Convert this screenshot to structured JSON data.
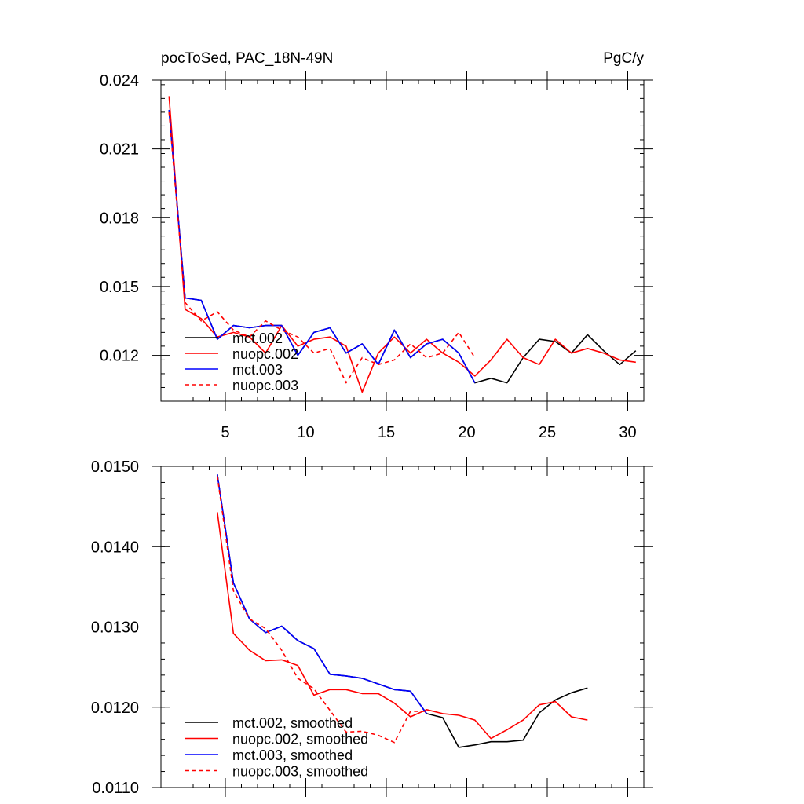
{
  "chart_data": [
    {
      "type": "line",
      "title_left": "pocToSed, PAC_18N-49N",
      "title_right": "PgC/y",
      "xlim": [
        1,
        31
      ],
      "ylim": [
        0.01,
        0.024
      ],
      "x_ticks": [
        5,
        10,
        15,
        20,
        25,
        30
      ],
      "x_tick_labels": [
        "5",
        "10",
        "15",
        "20",
        "25",
        "30"
      ],
      "y_ticks": [
        0.012,
        0.015,
        0.018,
        0.021,
        0.024
      ],
      "y_tick_labels": [
        "0.012",
        "0.015",
        "0.018",
        "0.021",
        "0.024"
      ],
      "legend_position": "bottom-left",
      "series": [
        {
          "name": "mct.002",
          "color": "#000000",
          "dash": "solid",
          "x": [
            1.5,
            2.5,
            3.5,
            4.5,
            5.5,
            6.5,
            7.5,
            8.5,
            9.5,
            10.5,
            11.5,
            12.5,
            13.5,
            14.5,
            15.5,
            16.5,
            17.5,
            18.5,
            19.5,
            20.5,
            21.5,
            22.5,
            23.5,
            24.5,
            25.5,
            26.5,
            27.5,
            28.5,
            29.5,
            30.5
          ],
          "y": [
            0.0227,
            0.0145,
            0.0144,
            0.0127,
            0.0133,
            0.0132,
            0.0133,
            0.0133,
            0.012,
            0.013,
            0.0132,
            0.0121,
            0.0125,
            0.0116,
            0.0131,
            0.0119,
            0.0125,
            0.0127,
            0.0121,
            0.0108,
            0.011,
            0.0108,
            0.0119,
            0.0127,
            0.0126,
            0.0121,
            0.0129,
            0.0122,
            0.0116,
            0.0122
          ]
        },
        {
          "name": "nuopc.002",
          "color": "#ff0000",
          "dash": "solid",
          "x": [
            1.5,
            2.5,
            3.5,
            4.5,
            5.5,
            6.5,
            7.5,
            8.5,
            9.5,
            10.5,
            11.5,
            12.5,
            13.5,
            14.5,
            15.5,
            16.5,
            17.5,
            18.5,
            19.5,
            20.5,
            21.5,
            22.5,
            23.5,
            24.5,
            25.5,
            26.5,
            27.5,
            28.5,
            29.5,
            30.5
          ],
          "y": [
            0.0233,
            0.014,
            0.0136,
            0.0128,
            0.013,
            0.0128,
            0.0121,
            0.0133,
            0.0124,
            0.0127,
            0.0128,
            0.0124,
            0.0104,
            0.0121,
            0.0128,
            0.0121,
            0.0127,
            0.0121,
            0.0117,
            0.0111,
            0.0118,
            0.0127,
            0.0119,
            0.0116,
            0.0127,
            0.0121,
            0.0123,
            0.0121,
            0.0118,
            0.0117
          ]
        },
        {
          "name": "mct.003",
          "color": "#0000ff",
          "dash": "solid",
          "x": [
            1.5,
            2.5,
            3.5,
            4.5,
            5.5,
            6.5,
            7.5,
            8.5,
            9.5,
            10.5,
            11.5,
            12.5,
            13.5,
            14.5,
            15.5,
            16.5,
            17.5,
            18.5,
            19.5,
            20.5
          ],
          "y": [
            0.0227,
            0.0145,
            0.0144,
            0.0127,
            0.0133,
            0.0132,
            0.0133,
            0.0133,
            0.012,
            0.013,
            0.0132,
            0.0121,
            0.0125,
            0.0116,
            0.0131,
            0.0119,
            0.0125,
            0.0127,
            0.0121,
            0.0108
          ]
        },
        {
          "name": "nuopc.003",
          "color": "#ff0000",
          "dash": "dashed",
          "x": [
            1.5,
            2.5,
            3.5,
            4.5,
            5.5,
            6.5,
            7.5,
            8.5,
            9.5,
            10.5,
            11.5,
            12.5,
            13.5,
            14.5,
            15.5,
            16.5,
            17.5,
            18.5,
            19.5,
            20.5
          ],
          "y": [
            0.0226,
            0.0143,
            0.0135,
            0.0139,
            0.0131,
            0.0128,
            0.0135,
            0.0131,
            0.0128,
            0.0121,
            0.0123,
            0.0108,
            0.0119,
            0.0116,
            0.0118,
            0.0125,
            0.0119,
            0.0121,
            0.013,
            0.0119
          ]
        }
      ]
    },
    {
      "type": "line",
      "xlim": [
        1,
        31
      ],
      "ylim": [
        0.011,
        0.015
      ],
      "y_ticks": [
        0.011,
        0.012,
        0.013,
        0.014,
        0.015
      ],
      "y_tick_labels": [
        "0.0110",
        "0.0120",
        "0.0130",
        "0.0140",
        "0.0150"
      ],
      "x_ticks": [
        5,
        10,
        15,
        20,
        25,
        30
      ],
      "legend_position": "bottom-left",
      "series": [
        {
          "name": "mct.002, smoothed",
          "color": "#000000",
          "dash": "solid",
          "x": [
            4.5,
            5.5,
            6.5,
            7.5,
            8.5,
            9.5,
            10.5,
            11.5,
            12.5,
            13.5,
            14.5,
            15.5,
            16.5,
            17.5,
            18.5,
            19.5,
            20.5,
            21.5,
            22.5,
            23.5,
            24.5,
            25.5,
            26.5,
            27.5
          ],
          "y": [
            0.0149,
            0.01355,
            0.0131,
            0.01293,
            0.01301,
            0.01283,
            0.01273,
            0.01241,
            0.01239,
            0.01236,
            0.01229,
            0.01222,
            0.0122,
            0.01192,
            0.01187,
            0.0115,
            0.01153,
            0.01157,
            0.01157,
            0.01159,
            0.01193,
            0.01209,
            0.01218,
            0.01224
          ]
        },
        {
          "name": "nuopc.002, smoothed",
          "color": "#ff0000",
          "dash": "solid",
          "x": [
            4.5,
            5.5,
            6.5,
            7.5,
            8.5,
            9.5,
            10.5,
            11.5,
            12.5,
            13.5,
            14.5,
            15.5,
            16.5,
            17.5,
            18.5,
            19.5,
            20.5,
            21.5,
            22.5,
            23.5,
            24.5,
            25.5,
            26.5,
            27.5
          ],
          "y": [
            0.01443,
            0.01292,
            0.01271,
            0.01258,
            0.01259,
            0.01252,
            0.01215,
            0.01222,
            0.01222,
            0.01217,
            0.01217,
            0.01205,
            0.01188,
            0.01197,
            0.01192,
            0.0119,
            0.01184,
            0.01161,
            0.01172,
            0.01184,
            0.01203,
            0.01207,
            0.01188,
            0.01184
          ]
        },
        {
          "name": "mct.003, smoothed",
          "color": "#0000ff",
          "dash": "solid",
          "x": [
            4.5,
            5.5,
            6.5,
            7.5,
            8.5,
            9.5,
            10.5,
            11.5,
            12.5,
            13.5,
            14.5,
            15.5,
            16.5,
            17.5
          ],
          "y": [
            0.0149,
            0.01355,
            0.0131,
            0.01293,
            0.01301,
            0.01283,
            0.01273,
            0.01241,
            0.01239,
            0.01236,
            0.01229,
            0.01222,
            0.0122,
            0.01192
          ]
        },
        {
          "name": "nuopc.003, smoothed",
          "color": "#ff0000",
          "dash": "dashed",
          "x": [
            4.5,
            5.5,
            6.5,
            7.5,
            8.5,
            9.5,
            10.5,
            11.5,
            12.5,
            13.5,
            14.5,
            15.5,
            16.5,
            17.5
          ],
          "y": [
            0.01488,
            0.01345,
            0.0131,
            0.01298,
            0.01271,
            0.01236,
            0.01223,
            0.01196,
            0.01169,
            0.0117,
            0.01165,
            0.01156,
            0.01195,
            0.01195
          ]
        }
      ]
    }
  ]
}
